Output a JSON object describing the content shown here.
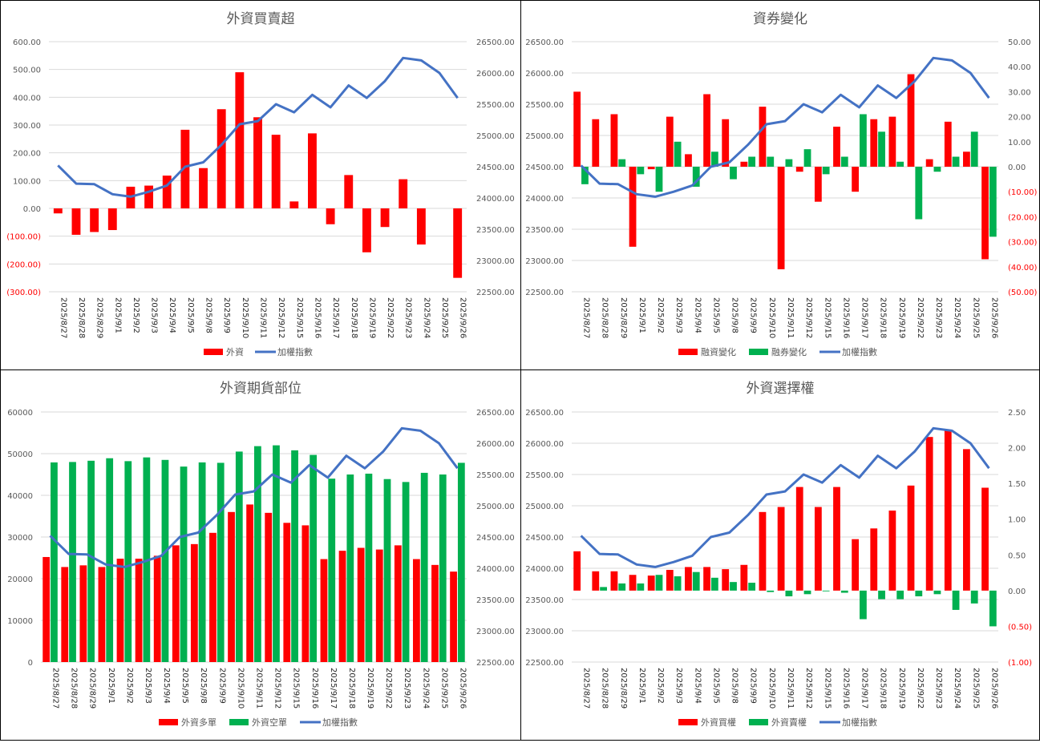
{
  "dates": [
    "2025/8/27",
    "2025/8/28",
    "2025/8/29",
    "2025/9/1",
    "2025/9/2",
    "2025/9/3",
    "2025/9/4",
    "2025/9/5",
    "2025/9/8",
    "2025/9/9",
    "2025/9/10",
    "2025/9/11",
    "2025/9/12",
    "2025/9/15",
    "2025/9/16",
    "2025/9/17",
    "2025/9/18",
    "2025/9/19",
    "2025/9/22",
    "2025/9/23",
    "2025/9/24",
    "2025/9/25",
    "2025/9/26"
  ],
  "colors": {
    "red": "#ff0000",
    "green": "#00b050",
    "line": "#4472c4"
  },
  "chart_data": [
    {
      "type": "bar",
      "title": "外資買賣超",
      "series": [
        {
          "name": "外資",
          "color": "red",
          "axis": "primary",
          "values": [
            -18,
            -95,
            -85,
            -78,
            78,
            82,
            118,
            283,
            145,
            357,
            490,
            328,
            265,
            25,
            270,
            -57,
            120,
            -158,
            -67,
            105,
            -130,
            0,
            -250
          ]
        },
        {
          "name": "加權指數",
          "type": "line",
          "axis": "secondary",
          "values": [
            24520,
            24230,
            24220,
            24060,
            24020,
            24100,
            24200,
            24500,
            24570,
            24850,
            25180,
            25230,
            25500,
            25370,
            25650,
            25450,
            25800,
            25600,
            25870,
            26240,
            26200,
            26000,
            25600
          ]
        }
      ],
      "primary_axis": {
        "min": -300,
        "max": 600,
        "step": 100,
        "ticks": [
          "(300.00)",
          "(200.00)",
          "(100.00)",
          "0.00",
          "100.00",
          "200.00",
          "300.00",
          "400.00",
          "500.00",
          "600.00"
        ]
      },
      "secondary_axis": {
        "min": 22500,
        "max": 26500,
        "step": 500,
        "ticks": [
          "22500.00",
          "23000.00",
          "23500.00",
          "24000.00",
          "24500.00",
          "25000.00",
          "25500.00",
          "26000.00",
          "26500.00"
        ]
      },
      "legend": [
        "外資",
        "加權指數"
      ]
    },
    {
      "type": "bar",
      "title": "資券變化",
      "series": [
        {
          "name": "融資變化",
          "color": "red",
          "axis": "secondary",
          "values": [
            30,
            19,
            21,
            -32,
            -1,
            20,
            5,
            29,
            19,
            2,
            24,
            -41,
            -2,
            -14,
            16,
            -10,
            19,
            20,
            37,
            3,
            18,
            6,
            -37
          ]
        },
        {
          "name": "融券變化",
          "color": "green",
          "axis": "secondary",
          "values": [
            -7,
            0,
            3,
            -3,
            -10,
            10,
            -8,
            6,
            -5,
            4,
            4,
            3,
            7,
            -3,
            4,
            21,
            14,
            2,
            -21,
            -2,
            4,
            14,
            -28
          ]
        },
        {
          "name": "加權指數",
          "type": "line",
          "axis": "primary",
          "values": [
            24520,
            24230,
            24220,
            24060,
            24020,
            24100,
            24200,
            24500,
            24570,
            24850,
            25180,
            25230,
            25500,
            25370,
            25650,
            25450,
            25800,
            25600,
            25870,
            26240,
            26200,
            26000,
            25600
          ]
        }
      ],
      "primary_axis": {
        "min": 22500,
        "max": 26500,
        "step": 500,
        "ticks": [
          "22500.00",
          "23000.00",
          "23500.00",
          "24000.00",
          "24500.00",
          "25000.00",
          "25500.00",
          "26000.00",
          "26500.00"
        ]
      },
      "secondary_axis": {
        "min": -50,
        "max": 50,
        "step": 10,
        "ticks": [
          "(50.00)",
          "(40.00)",
          "(30.00)",
          "(20.00)",
          "(10.00)",
          "0.00",
          "10.00",
          "20.00",
          "30.00",
          "40.00",
          "50.00"
        ]
      },
      "legend": [
        "融資變化",
        "融券變化",
        "加權指數"
      ]
    },
    {
      "type": "bar",
      "title": "外資期貨部位",
      "series": [
        {
          "name": "外資多單",
          "color": "red",
          "axis": "primary",
          "values": [
            25200,
            22800,
            23200,
            22800,
            24800,
            24800,
            25500,
            28000,
            28300,
            31000,
            36000,
            37800,
            35800,
            33400,
            32800,
            24700,
            26700,
            27400,
            27000,
            28000,
            24700,
            23300,
            21700
          ]
        },
        {
          "name": "外資空單",
          "color": "green",
          "axis": "primary",
          "values": [
            47900,
            48000,
            48300,
            48900,
            48200,
            49100,
            48500,
            46900,
            47900,
            47800,
            50500,
            51800,
            52000,
            50800,
            49700,
            44000,
            45000,
            45200,
            43900,
            43200,
            45400,
            45000,
            47800
          ]
        },
        {
          "name": "加權指數",
          "type": "line",
          "axis": "secondary",
          "values": [
            24520,
            24230,
            24220,
            24060,
            24020,
            24100,
            24200,
            24500,
            24570,
            24850,
            25180,
            25230,
            25500,
            25370,
            25650,
            25450,
            25800,
            25600,
            25870,
            26240,
            26200,
            26000,
            25600
          ]
        }
      ],
      "primary_axis": {
        "min": 0,
        "max": 60000,
        "step": 10000,
        "ticks": [
          "0",
          "10000",
          "20000",
          "30000",
          "40000",
          "50000",
          "60000"
        ]
      },
      "secondary_axis": {
        "min": 22500,
        "max": 26500,
        "step": 500,
        "ticks": [
          "22500.00",
          "23000.00",
          "23500.00",
          "24000.00",
          "24500.00",
          "25000.00",
          "25500.00",
          "26000.00",
          "26500.00"
        ]
      },
      "legend": [
        "外資多單",
        "外資空單",
        "加權指數"
      ]
    },
    {
      "type": "bar",
      "title": "外資選擇權",
      "series": [
        {
          "name": "外資買權",
          "color": "red",
          "axis": "secondary",
          "values": [
            0.55,
            0.27,
            0.27,
            0.22,
            0.21,
            0.29,
            0.33,
            0.33,
            0.3,
            0.36,
            1.1,
            1.17,
            1.45,
            1.17,
            1.45,
            0.72,
            0.87,
            1.12,
            1.47,
            2.15,
            2.25,
            1.98,
            1.44
          ]
        },
        {
          "name": "外資賣權",
          "color": "green",
          "axis": "secondary",
          "values": [
            0,
            0.05,
            0.1,
            0.1,
            0.22,
            0.2,
            0.26,
            0.18,
            0.12,
            0.11,
            -0.02,
            -0.08,
            -0.05,
            -0.01,
            -0.03,
            -0.4,
            -0.12,
            -0.12,
            -0.08,
            -0.05,
            -0.27,
            -0.18,
            -0.5
          ]
        },
        {
          "name": "加權指數",
          "type": "line",
          "axis": "primary",
          "values": [
            24520,
            24230,
            24220,
            24060,
            24020,
            24100,
            24200,
            24500,
            24570,
            24850,
            25180,
            25230,
            25500,
            25370,
            25650,
            25450,
            25800,
            25600,
            25870,
            26240,
            26200,
            26000,
            25600
          ]
        }
      ],
      "primary_axis": {
        "min": 22500,
        "max": 26500,
        "step": 500,
        "ticks": [
          "22500.00",
          "23000.00",
          "23500.00",
          "24000.00",
          "24500.00",
          "25000.00",
          "25500.00",
          "26000.00",
          "26500.00"
        ]
      },
      "secondary_axis": {
        "min": -1,
        "max": 2.5,
        "step": 0.5,
        "ticks": [
          "(1.00)",
          "(0.50)",
          "0.00",
          "0.50",
          "1.00",
          "1.50",
          "2.00",
          "2.50"
        ]
      },
      "legend": [
        "外資買權",
        "外資賣權",
        "加權指數"
      ]
    }
  ]
}
